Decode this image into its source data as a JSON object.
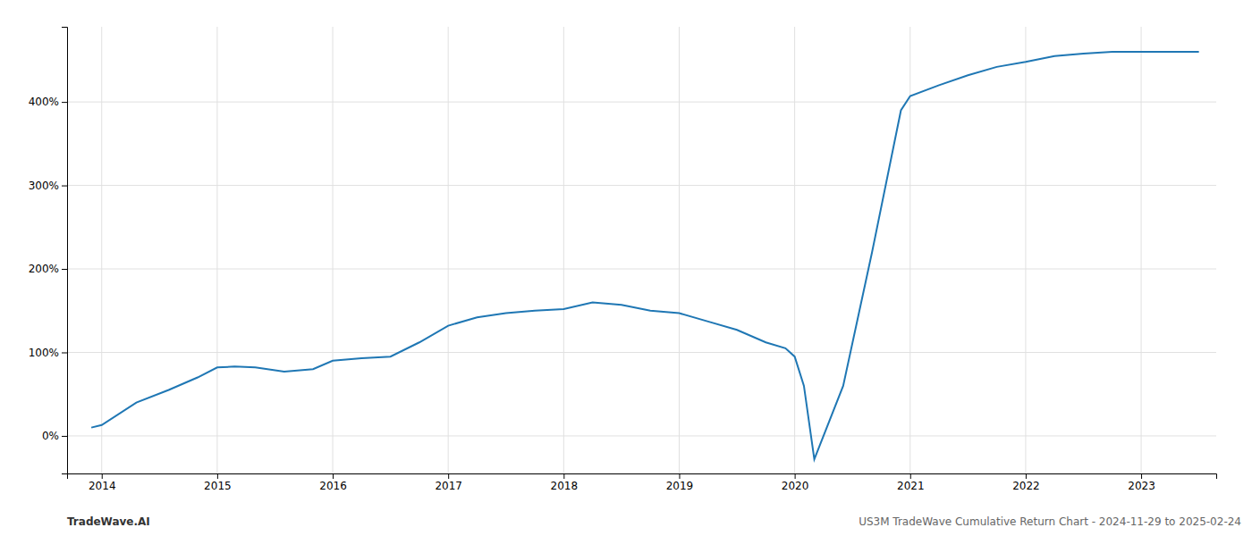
{
  "chart_data": {
    "type": "line",
    "x": [
      2013.91,
      2014.0,
      2014.3,
      2014.58,
      2014.83,
      2015.0,
      2015.15,
      2015.33,
      2015.58,
      2015.83,
      2016.0,
      2016.25,
      2016.5,
      2016.75,
      2017.0,
      2017.25,
      2017.5,
      2017.75,
      2018.0,
      2018.25,
      2018.5,
      2018.75,
      2019.0,
      2019.25,
      2019.5,
      2019.75,
      2019.92,
      2020.0,
      2020.08,
      2020.17,
      2020.42,
      2020.67,
      2020.92,
      2021.0,
      2021.25,
      2021.5,
      2021.75,
      2022.0,
      2022.25,
      2022.5,
      2022.75,
      2023.0,
      2023.25,
      2023.5
    ],
    "values": [
      10,
      13,
      40,
      55,
      70,
      82,
      83,
      82,
      77,
      80,
      90,
      93,
      95,
      112,
      132,
      142,
      147,
      150,
      152,
      160,
      157,
      150,
      147,
      137,
      127,
      112,
      105,
      95,
      60,
      -28,
      60,
      220,
      390,
      407,
      420,
      432,
      442,
      448,
      455,
      458,
      460,
      460,
      460,
      460
    ],
    "xlim": [
      2013.7,
      2023.65
    ],
    "xticks": [
      2014,
      2015,
      2016,
      2017,
      2018,
      2019,
      2020,
      2021,
      2022,
      2023
    ],
    "ylim": [
      -45,
      490
    ],
    "yticks": [
      {
        "value": 0,
        "label": "0%"
      },
      {
        "value": 100,
        "label": "100%"
      },
      {
        "value": 200,
        "label": "200%"
      },
      {
        "value": 300,
        "label": "300%"
      },
      {
        "value": 400,
        "label": "400%"
      }
    ],
    "grid": true,
    "annotations": [
      "TradeWave.AI",
      "US3M TradeWave Cumulative Return Chart - 2024-11-29 to 2025-02-24"
    ]
  }
}
